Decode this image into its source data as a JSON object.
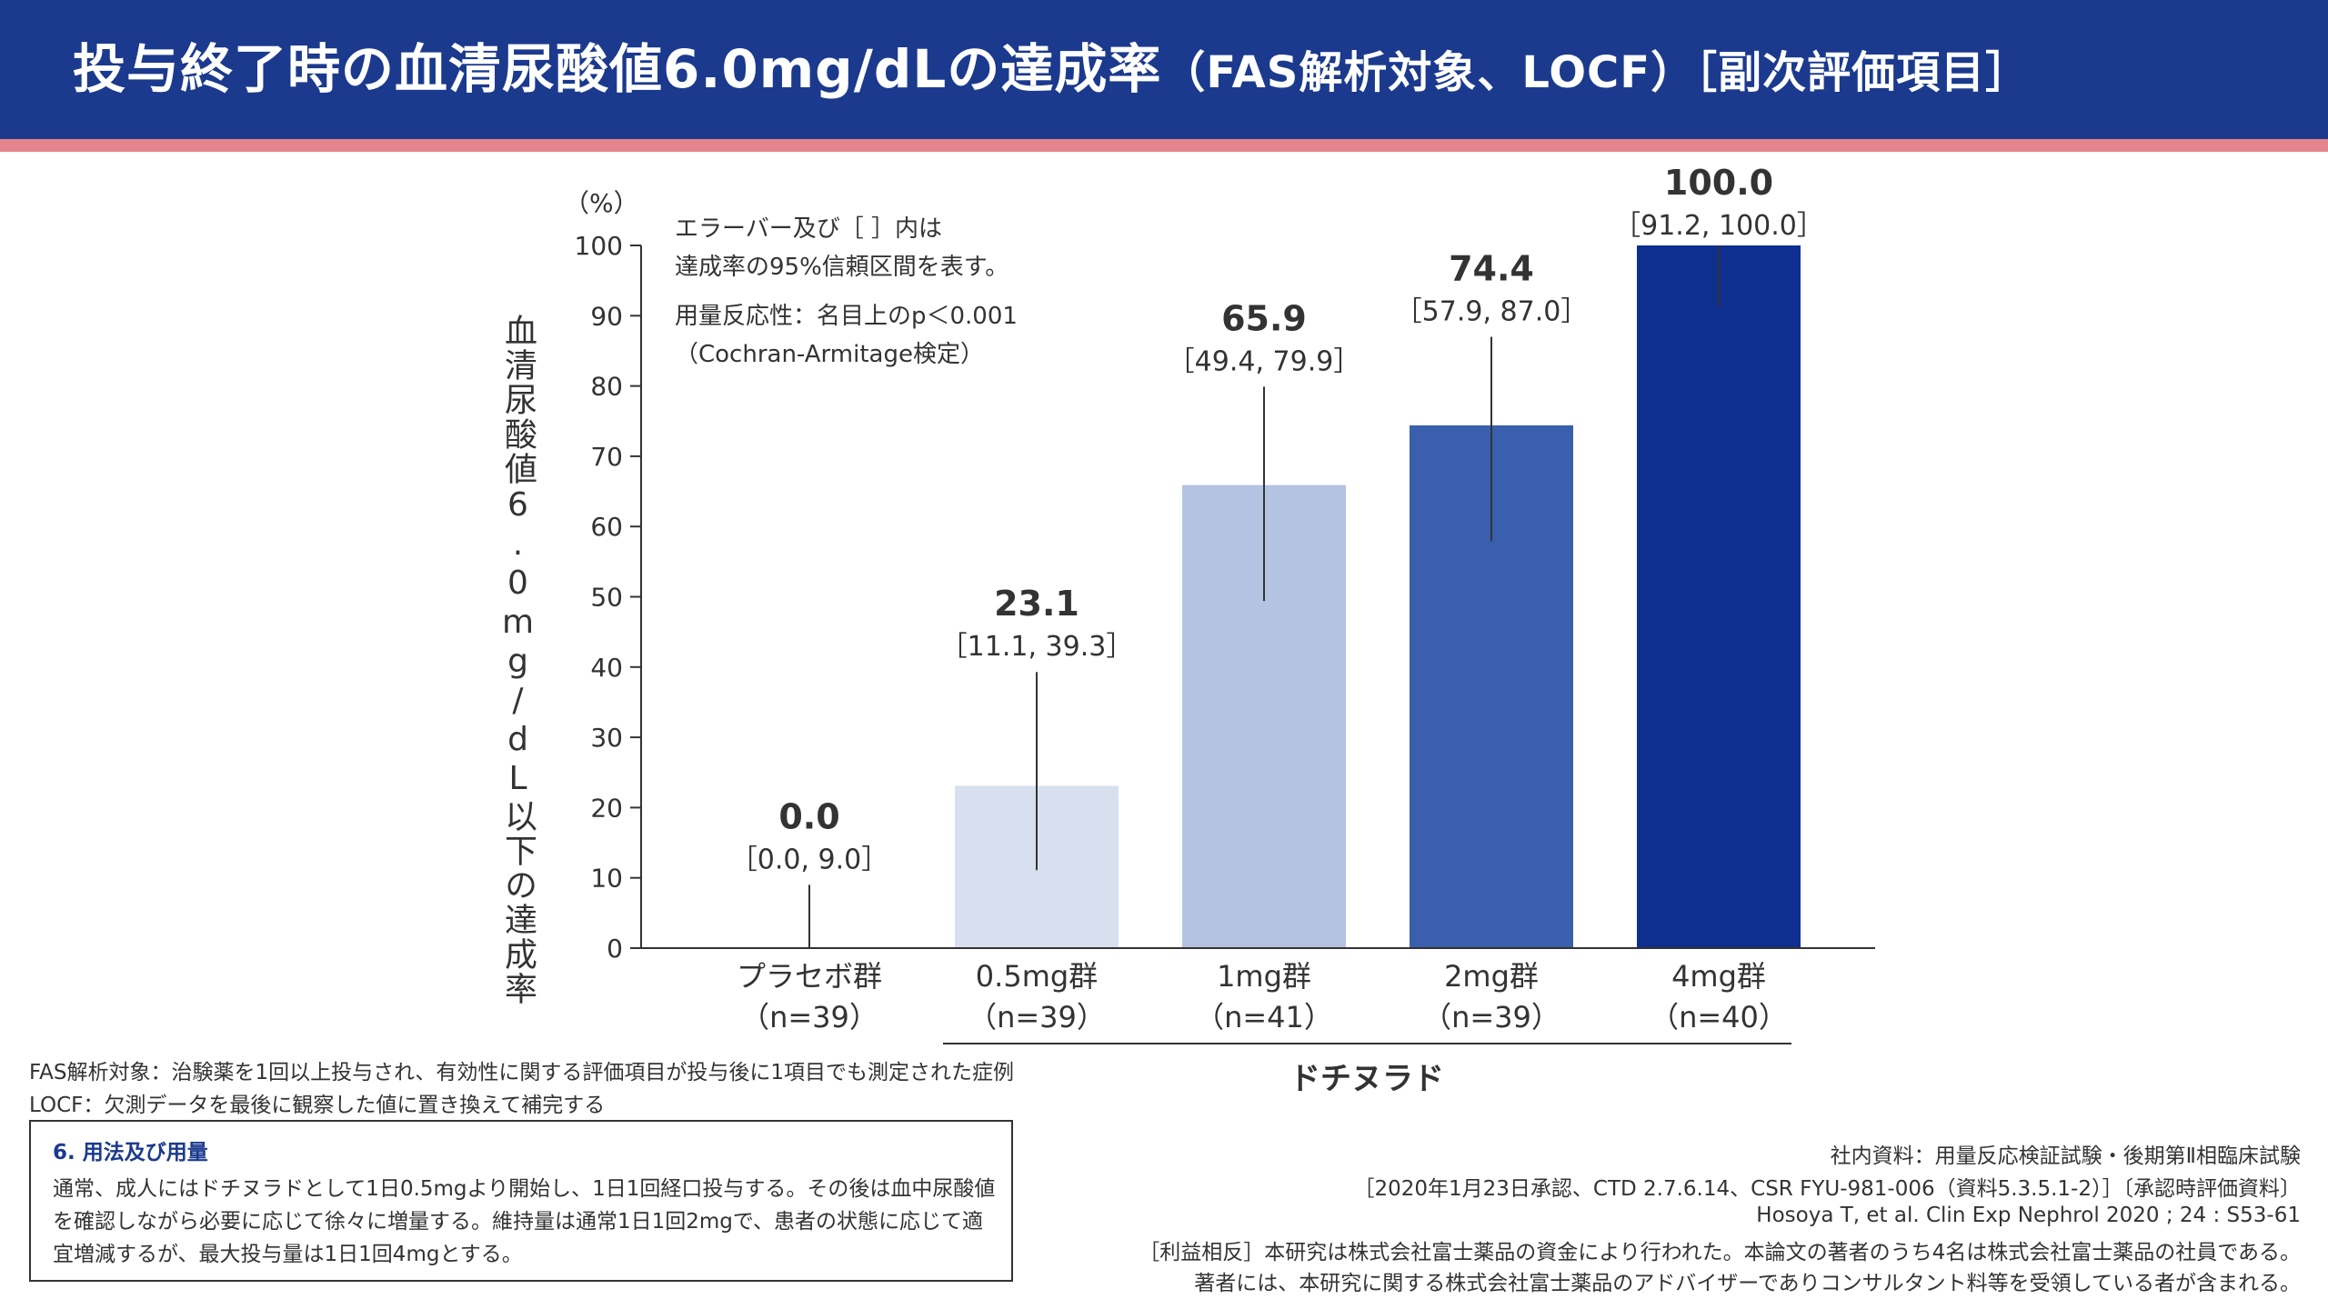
{
  "header": {
    "title_main": "投与終了時の血清尿酸値6.0mg/dLの達成率",
    "title_sub": "（FAS解析対象、LOCF）［副次評価項目］"
  },
  "chart_data": {
    "type": "bar",
    "categories": [
      "プラセボ群",
      "0.5mg群",
      "1mg群",
      "2mg群",
      "4mg群"
    ],
    "category_n": [
      "（n=39）",
      "（n=39）",
      "（n=41）",
      "（n=39）",
      "（n=40）"
    ],
    "values": [
      0.0,
      23.1,
      65.9,
      74.4,
      100.0
    ],
    "value_labels": [
      "0.0",
      "23.1",
      "65.9",
      "74.4",
      "100.0"
    ],
    "ci_low": [
      0.0,
      11.1,
      49.4,
      57.9,
      91.2
    ],
    "ci_high": [
      9.0,
      39.3,
      79.9,
      87.0,
      100.0
    ],
    "ci_labels": [
      "［0.0, 9.0］",
      "［11.1, 39.3］",
      "［49.4, 79.9］",
      "［57.9, 87.0］",
      "［91.2, 100.0］"
    ],
    "bar_colors": [
      "#ffffff",
      "#d8e0ef",
      "#b3c3e1",
      "#3a5fad",
      "#0e2f8f"
    ],
    "ylim": [
      0,
      100
    ],
    "yticks": [
      0,
      10,
      20,
      30,
      40,
      50,
      60,
      70,
      80,
      90,
      100
    ],
    "y_unit": "（%）",
    "ylabel": "血清尿酸値6.0mg/dL以下の達成率",
    "group_label": "ドチヌラド",
    "notes": [
      "エラーバー及び［ ］内は",
      "達成率の95%信頼区間を表す。",
      "用量反応性：名目上のp＜0.001",
      "（Cochran-Armitage検定）"
    ]
  },
  "footnotes": {
    "fas": "FAS解析対象：治験薬を1回以上投与され、有効性に関する評価項目が投与後に1項目でも測定された症例",
    "locf": "LOCF：欠測データを最後に観察した値に置き換えて補完する"
  },
  "dosage": {
    "title": "6. 用法及び用量",
    "body": "通常、成人にはドチヌラドとして1日0.5mgより開始し、1日1回経口投与する。その後は血中尿酸値を確認しながら必要に応じて徐々に増量する。維持量は通常1日1回2mgで、患者の状態に応じて適宜増減するが、最大投与量は1日1回4mgとする。"
  },
  "references": {
    "line1": "社内資料：用量反応検証試験・後期第Ⅱ相臨床試験",
    "line2": "［2020年1月23日承認、CTD 2.7.6.14、CSR FYU-981-006（資料5.3.5.1-2）］〔承認時評価資料〕",
    "line3": "Hosoya T, et al. Clin Exp Nephrol 2020 ; 24 : S53-61",
    "line4": "［利益相反］本研究は株式会社富士薬品の資金により行われた。本論文の著者のうち4名は株式会社富士薬品の社員である。",
    "line5": "著者には、本研究に関する株式会社富士薬品のアドバイザーでありコンサルタント料等を受領している者が含まれる。"
  }
}
